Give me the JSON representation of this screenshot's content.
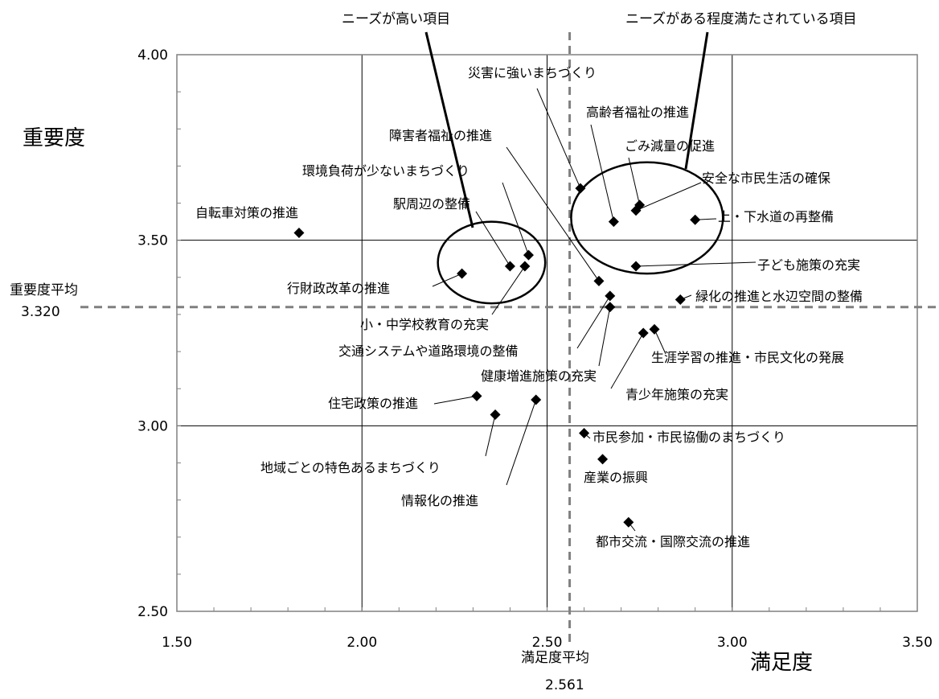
{
  "chart_data": {
    "type": "scatter",
    "xlabel": "満足度",
    "ylabel": "重要度",
    "xlim": [
      1.5,
      3.5
    ],
    "ylim": [
      2.5,
      4.0
    ],
    "x_ticks": [
      "1.50",
      "2.00",
      "2.50",
      "3.00",
      "3.50"
    ],
    "y_ticks": [
      "2.50",
      "3.00",
      "3.50",
      "4.00"
    ],
    "grid": true,
    "averages": {
      "x": {
        "label": "満足度平均",
        "value_text": "2.561",
        "value": 2.561
      },
      "y": {
        "label": "重要度平均",
        "value_text": "3.320",
        "value": 3.32
      }
    },
    "groups": [
      {
        "label": "ニーズが高い項目",
        "center": [
          2.35,
          3.44
        ],
        "radius": [
          0.29,
          0.11
        ]
      },
      {
        "label": "ニーズがある程度満たされている項目",
        "center": [
          2.77,
          3.56
        ],
        "radius": [
          0.41,
          0.15
        ]
      }
    ],
    "points": [
      {
        "label": "自転車対策の推進",
        "x": 1.83,
        "y": 3.52
      },
      {
        "label": "行財政改革の推進",
        "x": 2.27,
        "y": 3.41
      },
      {
        "label": "駅周辺の整備",
        "x": 2.4,
        "y": 3.43
      },
      {
        "label": "環境負荷が少ないまちづくり",
        "x": 2.45,
        "y": 3.46
      },
      {
        "label": "小・中学校教育の充実",
        "x": 2.44,
        "y": 3.43
      },
      {
        "label": "障害者福祉の推進",
        "x": 2.64,
        "y": 3.39
      },
      {
        "label": "災害に強いまちづくり",
        "x": 2.59,
        "y": 3.64
      },
      {
        "label": "高齢者福祉の推進",
        "x": 2.68,
        "y": 3.55
      },
      {
        "label": "ごみ減量の促進",
        "x": 2.75,
        "y": 3.595
      },
      {
        "label": "安全な市民生活の確保",
        "x": 2.74,
        "y": 3.58
      },
      {
        "label": "上・下水道の再整備",
        "x": 2.9,
        "y": 3.555
      },
      {
        "label": "子ども施策の充実",
        "x": 2.74,
        "y": 3.43
      },
      {
        "label": "緑化の推進と水辺空間の整備",
        "x": 2.86,
        "y": 3.34
      },
      {
        "label": "交通システムや道路環境の整備",
        "x": 2.67,
        "y": 3.35
      },
      {
        "label": "健康増進施策の充実",
        "x": 2.67,
        "y": 3.32
      },
      {
        "label": "生涯学習の推進・市民文化の発展",
        "x": 2.79,
        "y": 3.26
      },
      {
        "label": "青少年施策の充実",
        "x": 2.76,
        "y": 3.25
      },
      {
        "label": "住宅政策の推進",
        "x": 2.31,
        "y": 3.08
      },
      {
        "label": "地域ごとの特色あるまちづくり",
        "x": 2.36,
        "y": 3.03
      },
      {
        "label": "情報化の推進",
        "x": 2.47,
        "y": 3.07
      },
      {
        "label": "市民参加・市民協働のまちづくり",
        "x": 2.6,
        "y": 2.98
      },
      {
        "label": "産業の振興",
        "x": 2.65,
        "y": 2.91
      },
      {
        "label": "都市交流・国際交流の推進",
        "x": 2.72,
        "y": 2.74
      }
    ]
  }
}
